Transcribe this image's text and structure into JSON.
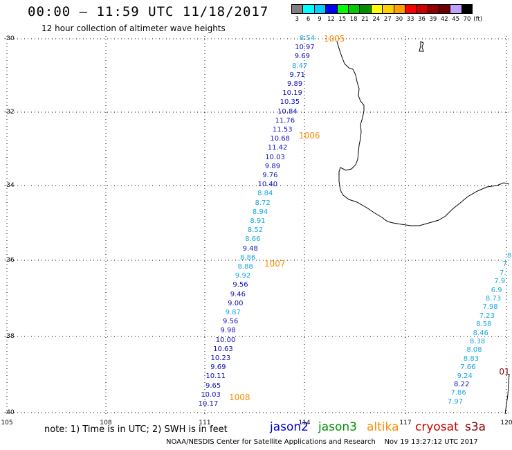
{
  "header": {
    "title": "00:00 – 11:59 UTC 11/18/2017",
    "subtitle": "12 hour collection of altimeter wave heights"
  },
  "colorbar": {
    "colors": [
      "#808080",
      "#00ffff",
      "#00d0ff",
      "#0000ff",
      "#00ff00",
      "#00cc00",
      "#009000",
      "#ffff00",
      "#ffd000",
      "#ffa000",
      "#ff0000",
      "#d00000",
      "#900000",
      "#700000",
      "#c0a0ff",
      "#000000"
    ],
    "labels": [
      "3",
      "6",
      "9",
      "12",
      "15",
      "18",
      "21",
      "24",
      "27",
      "30",
      "33",
      "36",
      "39",
      "42",
      "45",
      "70"
    ],
    "unit": "(ft)"
  },
  "map": {
    "lat_labels": [
      "-30",
      "-32",
      "-34",
      "-36",
      "-38",
      "-40"
    ],
    "lon_labels": [
      "105",
      "108",
      "111",
      "114",
      "117",
      "120"
    ],
    "pass_labels": [
      "1005",
      "1006",
      "1007",
      "1008"
    ],
    "track1_values": [
      "8.54",
      "10.97",
      "9.69",
      "8.47",
      "9.71",
      "9.89",
      "10.19",
      "10.35",
      "10.84",
      "11.76",
      "11.53",
      "10.68",
      "11.42",
      "10.03",
      "9.89",
      "9.76",
      "10.40",
      "8.84",
      "8.72",
      "8.94",
      "8.91",
      "8.52",
      "8.66",
      "9.48",
      "8.86",
      "8.88",
      "9.92",
      "9.56",
      "9.46",
      "9.00",
      "9.87",
      "9.56",
      "9.98",
      "10.00",
      "10.63",
      "10.23",
      "9.69",
      "10.11",
      "9.65",
      "10.03",
      "10.17"
    ],
    "track2_values": [
      "8",
      "7.",
      "7.",
      "7.9",
      "6.9",
      "8.73",
      "7.98",
      "7.23",
      "8.58",
      "8.46",
      "8.38",
      "8.08",
      "8.83",
      "7.66",
      "9.24",
      "8.22",
      "7.86",
      "7.97"
    ],
    "track2_red_label": "01"
  },
  "note": "note:  1) Time is in UTC;  2) SWH is in feet",
  "legend": [
    {
      "label": "jason2",
      "color": "#0000cc"
    },
    {
      "label": "jason3",
      "color": "#009000"
    },
    {
      "label": "altika",
      "color": "#ff8c00"
    },
    {
      "label": "cryosat",
      "color": "#cc0000"
    },
    {
      "label": "s3a",
      "color": "#8b0000"
    }
  ],
  "footer": "NOAA/NESDIS Center for Satellite Applications and Research    Nov 19 13:27:12 UTC 2017"
}
